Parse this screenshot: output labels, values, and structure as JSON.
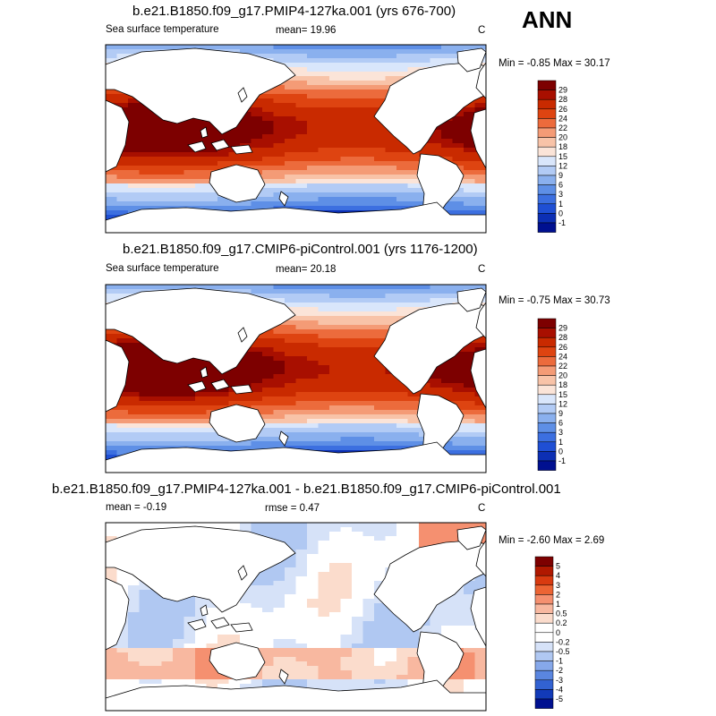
{
  "season": "ANN",
  "chart_data": [
    {
      "type": "heatmap",
      "title": "b.e21.B1850.f09_g17.PMIP4-127ka.001 (yrs 676-700)",
      "left_label": "Sea surface temperature",
      "center_label": "mean=  19.96",
      "units": "C",
      "minmax": "Min =  -0.85 Max =  30.17",
      "mean": 19.96,
      "min": -0.85,
      "max": 30.17,
      "colorbar": {
        "labels": [
          "29",
          "28",
          "26",
          "24",
          "22",
          "20",
          "18",
          "15",
          "12",
          "9",
          "6",
          "3",
          "1",
          "0",
          "-1"
        ],
        "levels": [
          29,
          28,
          26,
          24,
          22,
          20,
          18,
          15,
          12,
          9,
          6,
          3,
          1,
          0,
          -1
        ],
        "colors": [
          "#7d0000",
          "#a80f00",
          "#c92a00",
          "#de4411",
          "#ec6b3c",
          "#f49b76",
          "#f8c3a8",
          "#fbe4d8",
          "#d9e6fb",
          "#b2cbf5",
          "#8ab0ee",
          "#5e8fe6",
          "#3c6fe0",
          "#1f4fd4",
          "#0c2fb4",
          "#001090"
        ]
      }
    },
    {
      "type": "heatmap",
      "title": "b.e21.B1850.f09_g17.CMIP6-piControl.001 (yrs 1176-1200)",
      "left_label": "Sea surface temperature",
      "center_label": "mean=  20.18",
      "units": "C",
      "minmax": "Min =  -0.75 Max =  30.73",
      "mean": 20.18,
      "min": -0.75,
      "max": 30.73,
      "colorbar": {
        "labels": [
          "29",
          "28",
          "26",
          "24",
          "22",
          "20",
          "18",
          "15",
          "12",
          "9",
          "6",
          "3",
          "1",
          "0",
          "-1"
        ],
        "levels": [
          29,
          28,
          26,
          24,
          22,
          20,
          18,
          15,
          12,
          9,
          6,
          3,
          1,
          0,
          -1
        ],
        "colors": [
          "#7d0000",
          "#a80f00",
          "#c92a00",
          "#de4411",
          "#ec6b3c",
          "#f49b76",
          "#f8c3a8",
          "#fbe4d8",
          "#d9e6fb",
          "#b2cbf5",
          "#8ab0ee",
          "#5e8fe6",
          "#3c6fe0",
          "#1f4fd4",
          "#0c2fb4",
          "#001090"
        ]
      }
    },
    {
      "type": "heatmap",
      "title": "b.e21.B1850.f09_g17.PMIP4-127ka.001 - b.e21.B1850.f09_g17.CMIP6-piControl.001",
      "left_label": "mean =  -0.19",
      "center_label": "rmse =   0.47",
      "units": "C",
      "minmax": "Min =  -2.60 Max =   2.69",
      "mean": -0.19,
      "rmse": 0.47,
      "min": -2.6,
      "max": 2.69,
      "colorbar": {
        "labels": [
          "5",
          "4",
          "3",
          "2",
          "1",
          "0.5",
          "0.2",
          "0",
          "-0.2",
          "-0.5",
          "-1",
          "-2",
          "-3",
          "-4",
          "-5"
        ],
        "levels": [
          5,
          4,
          3,
          2,
          1,
          0.5,
          0.2,
          0,
          -0.2,
          -0.5,
          -1,
          -2,
          -3,
          -4,
          -5
        ],
        "colors": [
          "#7d0000",
          "#b01800",
          "#d83a10",
          "#ec6434",
          "#f59070",
          "#f8b8a0",
          "#fbdccc",
          "#ffffff",
          "#ffffff",
          "#d6e2f8",
          "#b0c8f2",
          "#86a8ea",
          "#5a86e0",
          "#3262d2",
          "#123ab8",
          "#001090"
        ]
      }
    }
  ]
}
